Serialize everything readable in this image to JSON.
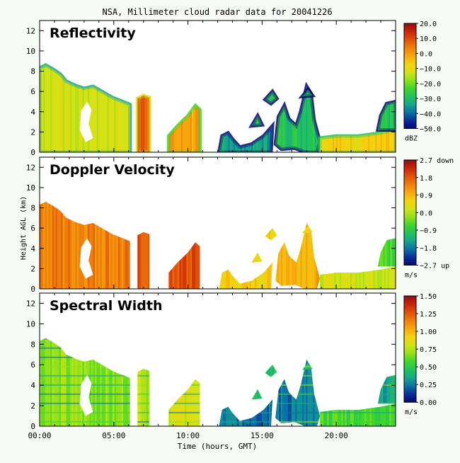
{
  "title": "NSA, Millimeter cloud radar data for 20041226",
  "xlabel": "Time (hours, GMT)",
  "ylabel": "Height AGL (km)",
  "colors": {
    "background": "#f6fbf6",
    "plot_background": "#ffffff",
    "colormap": [
      "#06066e",
      "#0a2f9a",
      "#0b72a6",
      "#17a68c",
      "#22c35a",
      "#40d62e",
      "#93e21a",
      "#d3e315",
      "#f6d00f",
      "#f7a70d",
      "#ee7f0b",
      "#e0500a",
      "#c8250a",
      "#8f0c0c"
    ]
  },
  "chart_data": [
    {
      "type": "heatmap",
      "title": "Reflectivity",
      "xlabel": "Time (hours, GMT)",
      "ylabel": "Height AGL (km)",
      "xlim": [
        0,
        24
      ],
      "ylim": [
        0,
        13
      ],
      "x_ticks": [
        0,
        5,
        10,
        15,
        20
      ],
      "x_tick_labels": [
        "00:00",
        "05:00",
        "10:00",
        "15:00",
        "20:00"
      ],
      "y_ticks": [
        0,
        2,
        4,
        6,
        8,
        10,
        12
      ],
      "colorbar": {
        "range": [
          -50,
          20
        ],
        "ticks": [
          20,
          10,
          0,
          -10,
          -20,
          -30,
          -40,
          -50
        ],
        "tick_labels": [
          "20.0",
          "10.0",
          "0.0",
          "−10.0",
          "−20.0",
          "−30.0",
          "−40.0",
          "−50.0"
        ],
        "unit": "dBZ"
      },
      "echo_regions": [
        {
          "t_start": 0.0,
          "t_end": 6.1,
          "top_km": 8.5,
          "base_km": 0
        },
        {
          "t_start": 6.6,
          "t_end": 7.4,
          "top_km": 5.6,
          "base_km": 0
        },
        {
          "t_start": 8.7,
          "t_end": 10.8,
          "top_km": 4.6,
          "base_km": 0
        },
        {
          "t_start": 12.1,
          "t_end": 15.7,
          "top_km": 2.6,
          "base_km": 0
        },
        {
          "t_start": 15.9,
          "t_end": 18.9,
          "top_km": 6.5,
          "base_km": 0
        },
        {
          "t_start": 18.9,
          "t_end": 24.0,
          "top_km": 5.0,
          "base_km": 0
        }
      ]
    },
    {
      "type": "heatmap",
      "title": "Doppler Velocity",
      "xlabel": "Time (hours, GMT)",
      "ylabel": "Height AGL (km)",
      "xlim": [
        0,
        24
      ],
      "ylim": [
        0,
        13
      ],
      "x_ticks": [
        0,
        5,
        10,
        15,
        20
      ],
      "x_tick_labels": [
        "00:00",
        "05:00",
        "10:00",
        "15:00",
        "20:00"
      ],
      "y_ticks": [
        0,
        2,
        4,
        6,
        8,
        10,
        12
      ],
      "colorbar": {
        "range": [
          -2.7,
          2.7
        ],
        "ticks": [
          2.7,
          1.8,
          0.9,
          0.0,
          -0.9,
          -1.8,
          -2.7
        ],
        "tick_labels": [
          "2.7 down",
          "1.8",
          "0.9",
          "0.0",
          "−0.9",
          "−1.8",
          "−2.7 up"
        ],
        "unit": "m/s"
      }
    },
    {
      "type": "heatmap",
      "title": "Spectral Width",
      "xlabel": "Time (hours, GMT)",
      "ylabel": "Height AGL (km)",
      "xlim": [
        0,
        24
      ],
      "ylim": [
        0,
        13
      ],
      "x_ticks": [
        0,
        5,
        10,
        15,
        20
      ],
      "x_tick_labels": [
        "00:00",
        "05:00",
        "10:00",
        "15:00",
        "20:00"
      ],
      "y_ticks": [
        0,
        2,
        4,
        6,
        8,
        10,
        12
      ],
      "colorbar": {
        "range": [
          0,
          1.5
        ],
        "ticks": [
          1.5,
          1.25,
          1.0,
          0.75,
          0.5,
          0.25,
          0.0
        ],
        "tick_labels": [
          "1.50",
          "1.25",
          "1.00",
          "0.75",
          "0.50",
          "0.25",
          "0.00"
        ],
        "unit": "m/s"
      }
    }
  ]
}
